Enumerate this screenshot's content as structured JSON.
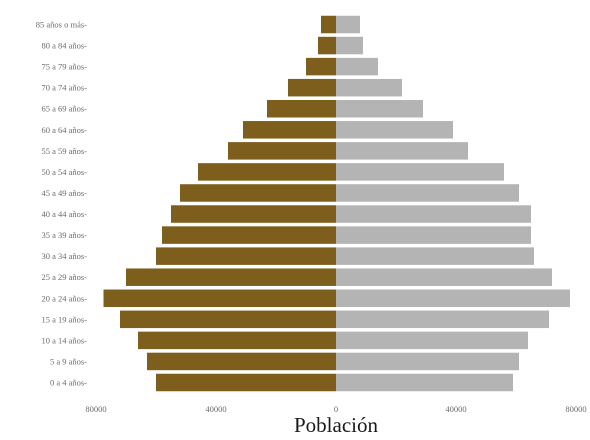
{
  "colors": {
    "male": "#7d5e1c",
    "female": "#b4b4b4",
    "tick_text": "#6b6b6b",
    "axis_title": "#1a1a1a"
  },
  "chart_data": {
    "type": "bar",
    "orientation": "horizontal",
    "subtype": "population-pyramid",
    "xlabel": "Población",
    "ylabel": "",
    "xlim": [
      -80000,
      80000
    ],
    "x_ticks": [
      -80000,
      -40000,
      0,
      40000,
      80000
    ],
    "x_tick_labels": [
      "80000",
      "40000",
      "0",
      "40000",
      "80000"
    ],
    "grid": false,
    "legend": "none",
    "categories": [
      "0 a 4 años",
      "5 a 9 años",
      "10 a 14 años",
      "15 a 19 años",
      "20 a 24 años",
      "25 a 29 años",
      "30 a 34 años",
      "35 a 39 años",
      "40 a 44 años",
      "45 a 49 años",
      "50 a 54 años",
      "55 a 59 años",
      "60 a 64 años",
      "65 a 69 años",
      "70 a 74 años",
      "75 a 79 años",
      "80 a 84 años",
      "85 años o más"
    ],
    "series": [
      {
        "values": [
          -60000,
          -63000,
          -66000,
          -72000,
          -77500,
          -70000,
          -60000,
          -58000,
          -55000,
          -52000,
          -46000,
          -36000,
          -31000,
          -23000,
          -16000,
          -10000,
          -6000,
          -5000
        ]
      },
      {
        "values": [
          59000,
          61000,
          64000,
          71000,
          78000,
          72000,
          66000,
          65000,
          65000,
          61000,
          56000,
          44000,
          39000,
          29000,
          22000,
          14000,
          9000,
          8000
        ]
      }
    ]
  }
}
